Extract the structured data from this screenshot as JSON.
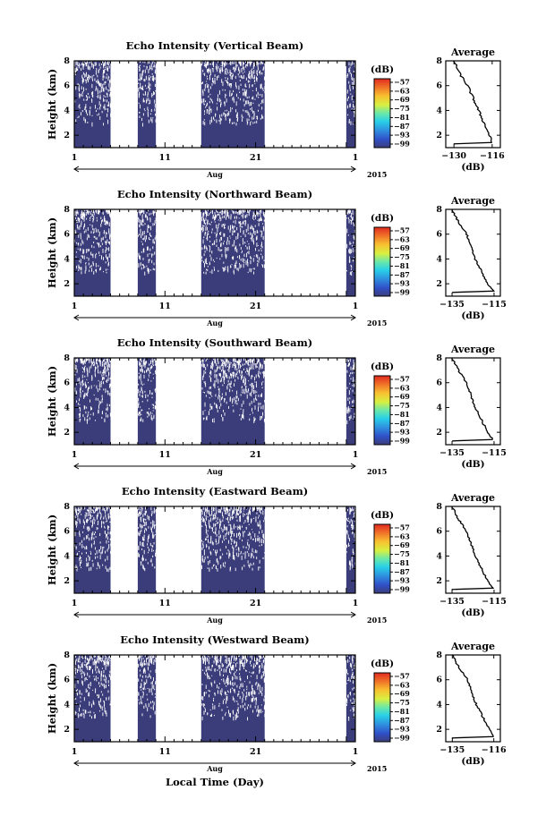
{
  "xaxis_common": {
    "month_label": "Aug",
    "year_label": "2015",
    "bottom_label": "Local Time (Day)",
    "ticks": [
      "1",
      "11",
      "21",
      "1"
    ]
  },
  "panels": [
    {
      "title": "Echo Intensity (Vertical Beam)",
      "ylabel": "Height (km)",
      "yticks": [
        "8",
        "6",
        "4",
        "2"
      ],
      "colorbar_unit": "(dB)",
      "colorbar_ticks": [
        "−57",
        "−63",
        "−69",
        "−75",
        "−81",
        "−87",
        "−93",
        "−99"
      ],
      "avg_title": "Average",
      "avg_xticks": [
        "−130",
        "−116"
      ],
      "avg_xlabel": "(dB)",
      "avg_yticks": [
        "8",
        "6",
        "4",
        "2"
      ]
    },
    {
      "title": "Echo Intensity (Northward Beam)",
      "ylabel": "Height (km)",
      "yticks": [
        "8",
        "6",
        "4",
        "2"
      ],
      "colorbar_unit": "(dB)",
      "colorbar_ticks": [
        "−57",
        "−63",
        "−69",
        "−75",
        "−81",
        "−87",
        "−93",
        "−99"
      ],
      "avg_title": "Average",
      "avg_xticks": [
        "−135",
        "−115"
      ],
      "avg_xlabel": "(dB)",
      "avg_yticks": [
        "8",
        "6",
        "4",
        "2"
      ]
    },
    {
      "title": "Echo Intensity (Southward Beam)",
      "ylabel": "Height (km)",
      "yticks": [
        "8",
        "6",
        "4",
        "2"
      ],
      "colorbar_unit": "(dB)",
      "colorbar_ticks": [
        "−57",
        "−63",
        "−69",
        "−75",
        "−81",
        "−87",
        "−93",
        "−99"
      ],
      "avg_title": "Average",
      "avg_xticks": [
        "−135",
        "−115"
      ],
      "avg_xlabel": "(dB)",
      "avg_yticks": [
        "8",
        "6",
        "4",
        "2"
      ]
    },
    {
      "title": "Echo Intensity (Eastward Beam)",
      "ylabel": "Height (km)",
      "yticks": [
        "8",
        "6",
        "4",
        "2"
      ],
      "colorbar_unit": "(dB)",
      "colorbar_ticks": [
        "−57",
        "−63",
        "−69",
        "−75",
        "−81",
        "−87",
        "−93",
        "−99"
      ],
      "avg_title": "Average",
      "avg_xticks": [
        "−135",
        "−115"
      ],
      "avg_xlabel": "(dB)",
      "avg_yticks": [
        "8",
        "6",
        "4",
        "2"
      ]
    },
    {
      "title": "Echo Intensity (Westward Beam)",
      "ylabel": "Height (km)",
      "yticks": [
        "8",
        "6",
        "4",
        "2"
      ],
      "colorbar_unit": "(dB)",
      "colorbar_ticks": [
        "−57",
        "−63",
        "−69",
        "−75",
        "−81",
        "−87",
        "−93",
        "−99"
      ],
      "avg_title": "Average",
      "avg_xticks": [
        "−135",
        "−116"
      ],
      "avg_xlabel": "(dB)",
      "avg_yticks": [
        "8",
        "6",
        "4",
        "2"
      ]
    }
  ],
  "chart_data": {
    "type": "heatmap",
    "x_range_days": [
      1,
      32
    ],
    "y_range_km": [
      1,
      8
    ],
    "colorbar_range_db": [
      -99,
      -57
    ],
    "colormap": [
      "#3b3d7a",
      "#3050c8",
      "#2f8fe0",
      "#28d0e8",
      "#6be8a8",
      "#d8f040",
      "#f8c030",
      "#f07028",
      "#e02a20"
    ],
    "data_fill_color": "#3b3d7a",
    "data_segments_days": [
      [
        1,
        5
      ],
      [
        8,
        10
      ],
      [
        15,
        22
      ],
      [
        31,
        32
      ]
    ],
    "average_profiles": [
      {
        "height_km": [
          8,
          7,
          6,
          5,
          4,
          3,
          2,
          1.3
        ],
        "db": [
          -130,
          -128,
          -125,
          -123,
          -121,
          -119,
          -117,
          -116
        ]
      },
      {
        "height_km": [
          8,
          7,
          6,
          5,
          4,
          3,
          2,
          1.3
        ],
        "db": [
          -135,
          -132,
          -128,
          -126,
          -124,
          -121,
          -118,
          -115
        ]
      },
      {
        "height_km": [
          8,
          7,
          6,
          5,
          4,
          3,
          2,
          1.3
        ],
        "db": [
          -135,
          -132,
          -128,
          -126,
          -124,
          -121,
          -118,
          -115
        ]
      },
      {
        "height_km": [
          8,
          7,
          6,
          5,
          4,
          3,
          2,
          1.3
        ],
        "db": [
          -135,
          -132,
          -128,
          -126,
          -124,
          -121,
          -118,
          -115
        ]
      },
      {
        "height_km": [
          8,
          7,
          6,
          5,
          4,
          3,
          2,
          1.3
        ],
        "db": [
          -135,
          -132,
          -128,
          -126,
          -124,
          -121,
          -118,
          -116
        ]
      }
    ]
  }
}
